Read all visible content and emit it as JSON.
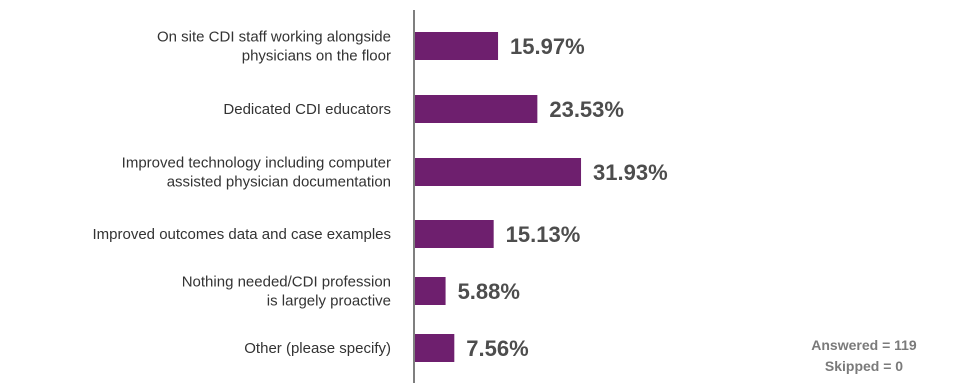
{
  "chart_data": {
    "type": "bar",
    "orientation": "horizontal",
    "categories": [
      [
        "On site CDI staff working alongside",
        "physicians on the floor"
      ],
      [
        "Dedicated CDI educators"
      ],
      [
        "Improved technology including computer",
        "assisted physician documentation"
      ],
      [
        "Improved outcomes data and case examples"
      ],
      [
        "Nothing needed/CDI profession",
        "is largely proactive"
      ],
      [
        "Other (please specify)"
      ]
    ],
    "values": [
      15.97,
      23.53,
      31.93,
      15.13,
      5.88,
      7.56
    ],
    "value_labels": [
      "15.97%",
      "23.53%",
      "31.93%",
      "15.13%",
      "5.88%",
      "7.56%"
    ],
    "unit": "%",
    "bar_color": "#6e1f6e",
    "axis_color": "#555555",
    "grid": false,
    "legend": "none"
  },
  "footnote": {
    "answered": "Answered = 119",
    "skipped": "Skipped = 0"
  }
}
